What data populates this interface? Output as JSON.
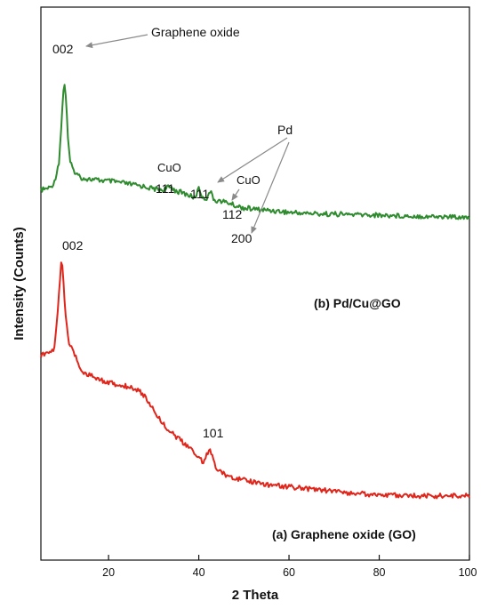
{
  "chart_data": {
    "type": "line",
    "title": "",
    "xlabel": "2 Theta",
    "ylabel": "Intensity (Counts)",
    "xlim": [
      5,
      100
    ],
    "xticks": [
      20,
      40,
      60,
      80,
      100
    ],
    "y_ticks_shown": false,
    "colors": {
      "green": "#2e8b2e",
      "red": "#e0251b",
      "axis": "#111111"
    },
    "series": [
      {
        "name": "(b) Pd/Cu@GO",
        "color": "#2e8b2e",
        "x": [
          5,
          7,
          8,
          9,
          9.5,
          10,
          10.3,
          10.6,
          11,
          11.5,
          12,
          13,
          14,
          15,
          17,
          20,
          22,
          25,
          28,
          30,
          32,
          33,
          34,
          35,
          36,
          38,
          39,
          39.6,
          40,
          40.5,
          41,
          41.8,
          42.5,
          43.2,
          44,
          45,
          46,
          47,
          48,
          50,
          52,
          55,
          58,
          60,
          65,
          70,
          75,
          80,
          85,
          90,
          95,
          100
        ],
        "y": [
          0.05,
          0.07,
          0.12,
          0.3,
          0.6,
          0.95,
          1.0,
          0.85,
          0.5,
          0.3,
          0.24,
          0.19,
          0.16,
          0.15,
          0.14,
          0.13,
          0.12,
          0.1,
          0.08,
          0.06,
          0.05,
          0.07,
          0.075,
          0.04,
          0.03,
          0.0,
          -0.02,
          0.02,
          0.075,
          0.02,
          -0.03,
          -0.02,
          0.045,
          -0.03,
          -0.045,
          -0.05,
          -0.06,
          -0.07,
          -0.09,
          -0.11,
          -0.12,
          -0.13,
          -0.14,
          -0.15,
          -0.16,
          -0.165,
          -0.17,
          -0.175,
          -0.18,
          -0.185,
          -0.19,
          -0.19
        ]
      },
      {
        "name": "(a) Graphene oxide (GO)",
        "color": "#e0251b",
        "x": [
          5,
          7,
          8,
          8.7,
          9.2,
          9.6,
          10,
          10.3,
          10.7,
          11.2,
          12,
          13,
          14,
          15,
          17,
          20,
          22,
          25,
          27,
          28,
          30,
          32,
          35,
          38,
          40,
          41,
          42,
          42.5,
          43,
          44,
          45,
          48,
          50,
          55,
          60,
          65,
          70,
          75,
          80,
          85,
          90,
          95,
          100
        ],
        "y": [
          0.57,
          0.58,
          0.6,
          0.75,
          0.9,
          1.0,
          0.9,
          0.8,
          0.7,
          0.62,
          0.6,
          0.55,
          0.5,
          0.49,
          0.47,
          0.45,
          0.44,
          0.43,
          0.41,
          0.39,
          0.33,
          0.27,
          0.21,
          0.16,
          0.12,
          0.1,
          0.14,
          0.15,
          0.12,
          0.07,
          0.05,
          0.03,
          0.02,
          0.0,
          -0.01,
          -0.02,
          -0.03,
          -0.04,
          -0.045,
          -0.05,
          -0.05,
          -0.05,
          -0.05
        ]
      }
    ],
    "annotations": [
      {
        "id": "graphene-oxide-label",
        "text": "Graphene oxide"
      },
      {
        "id": "green-002",
        "text": "002"
      },
      {
        "id": "cuo-label-1",
        "text": "CuO"
      },
      {
        "id": "cuo-111",
        "text": "111"
      },
      {
        "id": "pd-label",
        "text": "Pd"
      },
      {
        "id": "pd-111",
        "text": "111"
      },
      {
        "id": "cuo-label-2",
        "text": "CuO"
      },
      {
        "id": "cuo-112",
        "text": "112"
      },
      {
        "id": "pd-200",
        "text": "200"
      },
      {
        "id": "red-002",
        "text": "002"
      },
      {
        "id": "red-101",
        "text": "101"
      }
    ]
  }
}
